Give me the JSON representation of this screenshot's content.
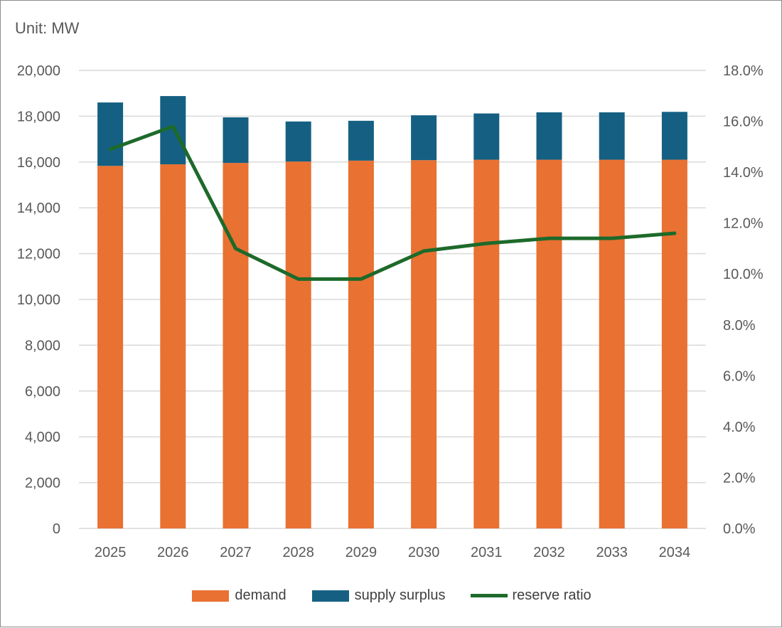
{
  "unit_label": "Unit: MW",
  "colors": {
    "demand": "#E97132",
    "supply_surplus": "#156082",
    "reserve_ratio": "#1D6A2A",
    "grid": "#D9D9D9"
  },
  "chart_data": {
    "type": "bar",
    "stacked": true,
    "categories": [
      "2025",
      "2026",
      "2027",
      "2028",
      "2029",
      "2030",
      "2031",
      "2032",
      "2033",
      "2034"
    ],
    "series": [
      {
        "name": "demand",
        "type": "bar",
        "axis": "left",
        "values": [
          15830,
          15900,
          15960,
          16020,
          16060,
          16080,
          16100,
          16100,
          16100,
          16100
        ]
      },
      {
        "name": "supply surplus",
        "type": "bar",
        "axis": "left",
        "values": [
          2770,
          2980,
          1990,
          1750,
          1740,
          1960,
          2020,
          2070,
          2070,
          2090
        ]
      },
      {
        "name": "reserve ratio",
        "type": "line",
        "axis": "right",
        "values": [
          14.9,
          15.8,
          11.0,
          9.8,
          9.8,
          10.9,
          11.2,
          11.4,
          11.4,
          11.6
        ]
      }
    ],
    "ylim": [
      0,
      20000
    ],
    "y_ticks": [
      "0",
      "2,000",
      "4,000",
      "6,000",
      "8,000",
      "10,000",
      "12,000",
      "14,000",
      "16,000",
      "18,000",
      "20,000"
    ],
    "y2lim": [
      0,
      18
    ],
    "y2_ticks": [
      "0.0%",
      "2.0%",
      "4.0%",
      "6.0%",
      "8.0%",
      "10.0%",
      "12.0%",
      "14.0%",
      "16.0%",
      "18.0%"
    ],
    "grid": true,
    "legend_position": "bottom"
  }
}
